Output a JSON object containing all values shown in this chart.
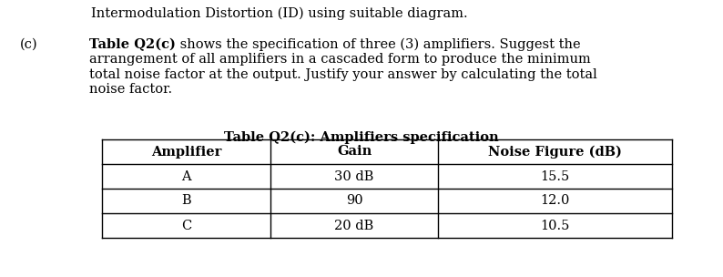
{
  "label_c": "(c)",
  "bold_part": "Table Q2(c)",
  "line1_rest": " shows the specification of three (3) amplifiers. Suggest the",
  "line2": "arrangement of all amplifiers in a cascaded form to produce the minimum",
  "line3": "total noise factor at the output. Justify your answer by calculating the total",
  "line4": "noise factor.",
  "top_text": "Intermodulation Distortion (ID) using suitable diagram.",
  "table_title": "Table Q2(c): Amplifiers specification",
  "col_headers": [
    "Amplifier",
    "Gain",
    "Noise Figure (dB)"
  ],
  "rows": [
    [
      "A",
      "30 dB",
      "15.5"
    ],
    [
      "B",
      "90",
      "12.0"
    ],
    [
      "C",
      "20 dB",
      "10.5"
    ]
  ],
  "bg_color": "#ffffff",
  "text_color": "#000000",
  "font_size": 10.5
}
